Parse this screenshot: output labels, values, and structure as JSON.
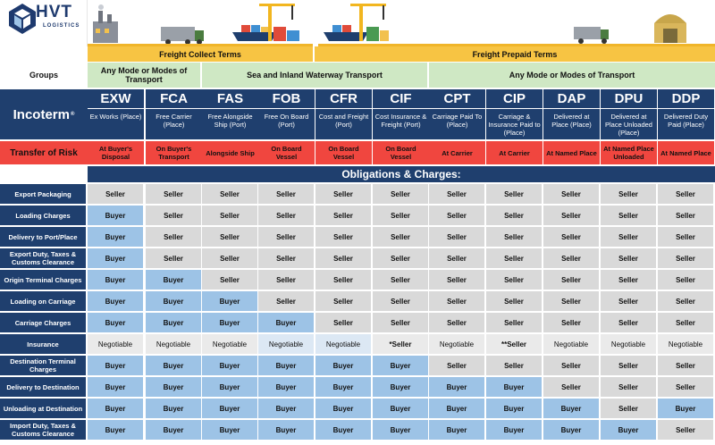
{
  "brand": {
    "name": "HVT",
    "tagline": "LOGISTICS"
  },
  "banners": {
    "collect": "Freight Collect Terms",
    "prepaid": "Freight Prepaid Terms"
  },
  "groups_label": "Groups",
  "groups": [
    "Any Mode or Modes of Transport",
    "Sea and Inland Waterway Transport",
    "Any Mode or Modes of Transport"
  ],
  "incoterm_label": "Incoterm",
  "incoterm_mark": "®",
  "terms": [
    {
      "code": "EXW",
      "desc": "Ex Works (Place)",
      "risk": "At Buyer's Disposal"
    },
    {
      "code": "FCA",
      "desc": "Free Carrier (Place)",
      "risk": "On Buyer's Transport"
    },
    {
      "code": "FAS",
      "desc": "Free Alongside Ship (Port)",
      "risk": "Alongside Ship"
    },
    {
      "code": "FOB",
      "desc": "Free On Board (Port)",
      "risk": "On Board Vessel"
    },
    {
      "code": "CFR",
      "desc": "Cost and Freight (Port)",
      "risk": "On Board Vessel"
    },
    {
      "code": "CIF",
      "desc": "Cost Insurance & Freight (Port)",
      "risk": "On Board Vessel"
    },
    {
      "code": "CPT",
      "desc": "Carriage Paid To (Place)",
      "risk": "At Carrier"
    },
    {
      "code": "CIP",
      "desc": "Carriage & Insurance Paid to (Place)",
      "risk": "At Carrier"
    },
    {
      "code": "DAP",
      "desc": "Delivered at Place (Place)",
      "risk": "At Named Place"
    },
    {
      "code": "DPU",
      "desc": "Delivered at Place Unloaded (Place)",
      "risk": "At Named Place Unloaded"
    },
    {
      "code": "DDP",
      "desc": "Delivered Duty Paid (Place)",
      "risk": "At Named Place"
    }
  ],
  "risk_label": "Transfer of Risk",
  "obligations_title": "Obligations & Charges:",
  "rows": [
    {
      "label": "Export Packaging",
      "values": [
        "Seller",
        "Seller",
        "Seller",
        "Seller",
        "Seller",
        "Seller",
        "Seller",
        "Seller",
        "Seller",
        "Seller",
        "Seller"
      ]
    },
    {
      "label": "Loading Charges",
      "values": [
        "Buyer",
        "Seller",
        "Seller",
        "Seller",
        "Seller",
        "Seller",
        "Seller",
        "Seller",
        "Seller",
        "Seller",
        "Seller"
      ]
    },
    {
      "label": "Delivery to Port/Place",
      "values": [
        "Buyer",
        "Seller",
        "Seller",
        "Seller",
        "Seller",
        "Seller",
        "Seller",
        "Seller",
        "Seller",
        "Seller",
        "Seller"
      ]
    },
    {
      "label": "Export Duty, Taxes & Customs Clearance",
      "values": [
        "Buyer",
        "Seller",
        "Seller",
        "Seller",
        "Seller",
        "Seller",
        "Seller",
        "Seller",
        "Seller",
        "Seller",
        "Seller"
      ]
    },
    {
      "label": "Origin Terminal Charges",
      "values": [
        "Buyer",
        "Buyer",
        "Seller",
        "Seller",
        "Seller",
        "Seller",
        "Seller",
        "Seller",
        "Seller",
        "Seller",
        "Seller"
      ]
    },
    {
      "label": "Loading on Carriage",
      "values": [
        "Buyer",
        "Buyer",
        "Buyer",
        "Seller",
        "Seller",
        "Seller",
        "Seller",
        "Seller",
        "Seller",
        "Seller",
        "Seller"
      ]
    },
    {
      "label": "Carriage Charges",
      "values": [
        "Buyer",
        "Buyer",
        "Buyer",
        "Buyer",
        "Seller",
        "Seller",
        "Seller",
        "Seller",
        "Seller",
        "Seller",
        "Seller"
      ]
    },
    {
      "label": "Insurance",
      "values": [
        "Negotiable",
        "Negotiable",
        "Negotiable",
        "Negotiable",
        "Negotiable",
        "*Seller",
        "Negotiable",
        "**Seller",
        "Negotiable",
        "Negotiable",
        "Negotiable"
      ]
    },
    {
      "label": "Destination Terminal Charges",
      "values": [
        "Buyer",
        "Buyer",
        "Buyer",
        "Buyer",
        "Buyer",
        "Buyer",
        "Seller",
        "Seller",
        "Seller",
        "Seller",
        "Seller"
      ]
    },
    {
      "label": "Delivery to Destination",
      "values": [
        "Buyer",
        "Buyer",
        "Buyer",
        "Buyer",
        "Buyer",
        "Buyer",
        "Buyer",
        "Buyer",
        "Seller",
        "Seller",
        "Seller"
      ]
    },
    {
      "label": "Unloading at Destination",
      "values": [
        "Buyer",
        "Buyer",
        "Buyer",
        "Buyer",
        "Buyer",
        "Buyer",
        "Buyer",
        "Buyer",
        "Buyer",
        "Seller",
        "Buyer"
      ]
    },
    {
      "label": "Import Duty, Taxes & Customs Clearance",
      "values": [
        "Buyer",
        "Buyer",
        "Buyer",
        "Buyer",
        "Buyer",
        "Buyer",
        "Buyer",
        "Buyer",
        "Buyer",
        "Buyer",
        "Seller"
      ]
    }
  ],
  "colors": {
    "navy": "#1f3f6e",
    "risk_red": "#f0463f",
    "banner_yellow": "#f7c443",
    "group_green": "#cfe8c4",
    "seller_gray": "#d9d9d9",
    "buyer_blue": "#9dc3e6"
  }
}
